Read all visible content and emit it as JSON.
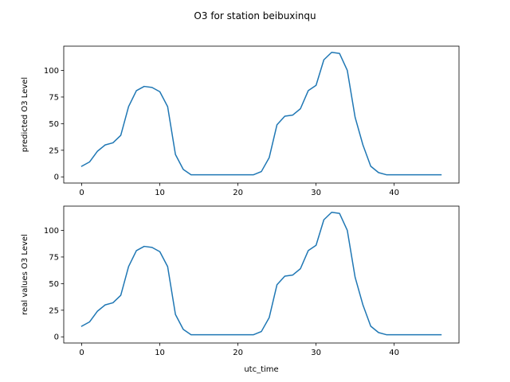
{
  "figure": {
    "suptitle": "O3 for station beibuxinqu",
    "line_color": "#1f77b4"
  },
  "chart_data": [
    {
      "type": "line",
      "title": "",
      "xlabel": "",
      "ylabel": "predicted O3 Level",
      "xlim": [
        -2.3,
        48.3
      ],
      "ylim": [
        -5.8,
        122.8
      ],
      "xticks": [
        0,
        10,
        20,
        30,
        40
      ],
      "yticks": [
        0,
        25,
        50,
        75,
        100
      ],
      "grid": false,
      "series": [
        {
          "x": [
            0,
            1,
            2,
            3,
            4,
            5,
            6,
            7,
            8,
            9,
            10,
            11,
            12,
            13,
            14,
            15,
            16,
            17,
            18,
            19,
            20,
            21,
            22,
            23,
            24,
            25,
            26,
            27,
            28,
            29,
            30,
            31,
            32,
            33,
            34,
            35,
            36,
            37,
            38,
            39,
            40,
            41,
            42,
            43,
            44,
            45,
            46
          ],
          "y": [
            10,
            14,
            24,
            30,
            32,
            39,
            66,
            81,
            85,
            84,
            80,
            66,
            21,
            7,
            2,
            2,
            2,
            2,
            2,
            2,
            2,
            2,
            2,
            5,
            18,
            49,
            57,
            58,
            64,
            81,
            86,
            110,
            117,
            116,
            100,
            56,
            30,
            10,
            4,
            2,
            2,
            2,
            2,
            2,
            2,
            2,
            2
          ]
        }
      ]
    },
    {
      "type": "line",
      "title": "",
      "xlabel": "utc_time",
      "ylabel": "real values O3 Level",
      "xlim": [
        -2.3,
        48.3
      ],
      "ylim": [
        -5.8,
        122.8
      ],
      "xticks": [
        0,
        10,
        20,
        30,
        40
      ],
      "yticks": [
        0,
        25,
        50,
        75,
        100
      ],
      "grid": false,
      "series": [
        {
          "x": [
            0,
            1,
            2,
            3,
            4,
            5,
            6,
            7,
            8,
            9,
            10,
            11,
            12,
            13,
            14,
            15,
            16,
            17,
            18,
            19,
            20,
            21,
            22,
            23,
            24,
            25,
            26,
            27,
            28,
            29,
            30,
            31,
            32,
            33,
            34,
            35,
            36,
            37,
            38,
            39,
            40,
            41,
            42,
            43,
            44,
            45,
            46
          ],
          "y": [
            10,
            14,
            24,
            30,
            32,
            39,
            66,
            81,
            85,
            84,
            80,
            66,
            21,
            7,
            2,
            2,
            2,
            2,
            2,
            2,
            2,
            2,
            2,
            5,
            18,
            49,
            57,
            58,
            64,
            81,
            86,
            110,
            117,
            116,
            100,
            56,
            30,
            10,
            4,
            2,
            2,
            2,
            2,
            2,
            2,
            2,
            2
          ]
        }
      ]
    }
  ]
}
